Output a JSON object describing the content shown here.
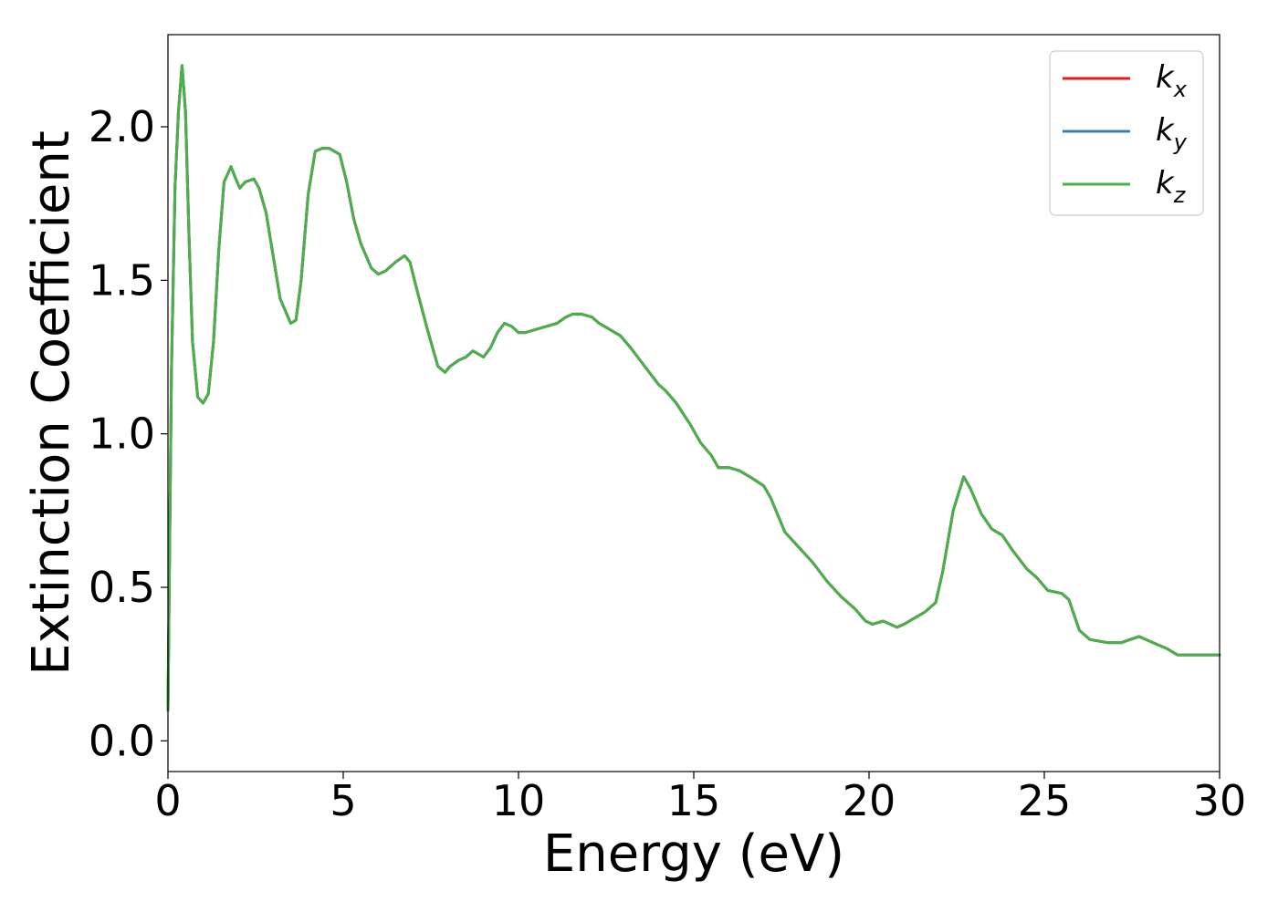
{
  "chart_data": {
    "type": "line",
    "title": "",
    "xlabel": "Energy (eV)",
    "ylabel": "Extinction Coefficient",
    "xlim": [
      0,
      30
    ],
    "ylim": [
      -0.1,
      2.3
    ],
    "xticks": [
      0,
      5,
      10,
      15,
      20,
      25,
      30
    ],
    "xtick_labels": [
      "0",
      "5",
      "10",
      "15",
      "20",
      "25",
      "30"
    ],
    "yticks": [
      0.0,
      0.5,
      1.0,
      1.5,
      2.0
    ],
    "ytick_labels": [
      "0.0",
      "0.5",
      "1.0",
      "1.5",
      "2.0"
    ],
    "grid": false,
    "legend_position": "top-right",
    "series": [
      {
        "name": "k_x",
        "color": "#e41a1c",
        "x": [
          0,
          0.1,
          0.2,
          0.3,
          0.4,
          0.5,
          0.6,
          0.7,
          0.85,
          1.0,
          1.15,
          1.3,
          1.45,
          1.6,
          1.8,
          1.9,
          2.05,
          2.2,
          2.45,
          2.6,
          2.8,
          3.0,
          3.2,
          3.5,
          3.65,
          3.8,
          4.0,
          4.2,
          4.4,
          4.6,
          4.9,
          5.1,
          5.3,
          5.5,
          5.8,
          6.0,
          6.2,
          6.5,
          6.75,
          6.9,
          7.1,
          7.4,
          7.7,
          7.9,
          8.05,
          8.3,
          8.5,
          8.7,
          8.85,
          9.0,
          9.2,
          9.4,
          9.6,
          9.8,
          10.0,
          10.2,
          10.5,
          10.8,
          11.1,
          11.35,
          11.55,
          11.8,
          12.1,
          12.3,
          12.6,
          12.9,
          13.2,
          13.6,
          14.0,
          14.2,
          14.5,
          14.9,
          15.2,
          15.5,
          15.7,
          16.0,
          16.3,
          16.6,
          17.0,
          17.2,
          17.6,
          18.0,
          18.4,
          18.8,
          19.2,
          19.6,
          19.9,
          20.1,
          20.4,
          20.6,
          20.8,
          21.0,
          21.3,
          21.6,
          21.9,
          22.1,
          22.4,
          22.7,
          22.9,
          23.2,
          23.5,
          23.8,
          24.1,
          24.5,
          24.8,
          25.1,
          25.5,
          25.7,
          26.0,
          26.3,
          26.8,
          27.2,
          27.7,
          28.1,
          28.5,
          28.8,
          29.2,
          29.6,
          30.0
        ],
        "y": [
          0.1,
          1.2,
          1.8,
          2.05,
          2.2,
          2.05,
          1.65,
          1.3,
          1.12,
          1.1,
          1.13,
          1.3,
          1.6,
          1.82,
          1.87,
          1.84,
          1.8,
          1.82,
          1.83,
          1.8,
          1.72,
          1.58,
          1.44,
          1.36,
          1.37,
          1.5,
          1.78,
          1.92,
          1.93,
          1.93,
          1.91,
          1.82,
          1.7,
          1.62,
          1.54,
          1.52,
          1.53,
          1.56,
          1.58,
          1.56,
          1.47,
          1.34,
          1.22,
          1.2,
          1.22,
          1.24,
          1.25,
          1.27,
          1.26,
          1.25,
          1.28,
          1.33,
          1.36,
          1.35,
          1.33,
          1.33,
          1.34,
          1.35,
          1.36,
          1.38,
          1.39,
          1.39,
          1.38,
          1.36,
          1.34,
          1.32,
          1.28,
          1.22,
          1.16,
          1.14,
          1.1,
          1.03,
          0.97,
          0.93,
          0.89,
          0.89,
          0.88,
          0.86,
          0.83,
          0.79,
          0.68,
          0.63,
          0.58,
          0.52,
          0.47,
          0.43,
          0.39,
          0.38,
          0.39,
          0.38,
          0.37,
          0.38,
          0.4,
          0.42,
          0.45,
          0.55,
          0.75,
          0.86,
          0.82,
          0.74,
          0.69,
          0.67,
          0.62,
          0.56,
          0.53,
          0.49,
          0.48,
          0.46,
          0.36,
          0.33,
          0.32,
          0.32,
          0.34,
          0.32,
          0.3,
          0.28,
          0.28,
          0.28,
          0.28
        ]
      },
      {
        "name": "k_y",
        "color": "#377eb8",
        "x": [
          0,
          0.1,
          0.2,
          0.3,
          0.4,
          0.5,
          0.6,
          0.7,
          0.85,
          1.0,
          1.15,
          1.3,
          1.45,
          1.6,
          1.8,
          1.9,
          2.05,
          2.2,
          2.45,
          2.6,
          2.8,
          3.0,
          3.2,
          3.5,
          3.65,
          3.8,
          4.0,
          4.2,
          4.4,
          4.6,
          4.9,
          5.1,
          5.3,
          5.5,
          5.8,
          6.0,
          6.2,
          6.5,
          6.75,
          6.9,
          7.1,
          7.4,
          7.7,
          7.9,
          8.05,
          8.3,
          8.5,
          8.7,
          8.85,
          9.0,
          9.2,
          9.4,
          9.6,
          9.8,
          10.0,
          10.2,
          10.5,
          10.8,
          11.1,
          11.35,
          11.55,
          11.8,
          12.1,
          12.3,
          12.6,
          12.9,
          13.2,
          13.6,
          14.0,
          14.2,
          14.5,
          14.9,
          15.2,
          15.5,
          15.7,
          16.0,
          16.3,
          16.6,
          17.0,
          17.2,
          17.6,
          18.0,
          18.4,
          18.8,
          19.2,
          19.6,
          19.9,
          20.1,
          20.4,
          20.6,
          20.8,
          21.0,
          21.3,
          21.6,
          21.9,
          22.1,
          22.4,
          22.7,
          22.9,
          23.2,
          23.5,
          23.8,
          24.1,
          24.5,
          24.8,
          25.1,
          25.5,
          25.7,
          26.0,
          26.3,
          26.8,
          27.2,
          27.7,
          28.1,
          28.5,
          28.8,
          29.2,
          29.6,
          30.0
        ],
        "y": [
          0.1,
          1.2,
          1.8,
          2.05,
          2.2,
          2.05,
          1.65,
          1.3,
          1.12,
          1.1,
          1.13,
          1.3,
          1.6,
          1.82,
          1.87,
          1.84,
          1.8,
          1.82,
          1.83,
          1.8,
          1.72,
          1.58,
          1.44,
          1.36,
          1.37,
          1.5,
          1.78,
          1.92,
          1.93,
          1.93,
          1.91,
          1.82,
          1.7,
          1.62,
          1.54,
          1.52,
          1.53,
          1.56,
          1.58,
          1.56,
          1.47,
          1.34,
          1.22,
          1.2,
          1.22,
          1.24,
          1.25,
          1.27,
          1.26,
          1.25,
          1.28,
          1.33,
          1.36,
          1.35,
          1.33,
          1.33,
          1.34,
          1.35,
          1.36,
          1.38,
          1.39,
          1.39,
          1.38,
          1.36,
          1.34,
          1.32,
          1.28,
          1.22,
          1.16,
          1.14,
          1.1,
          1.03,
          0.97,
          0.93,
          0.89,
          0.89,
          0.88,
          0.86,
          0.83,
          0.79,
          0.68,
          0.63,
          0.58,
          0.52,
          0.47,
          0.43,
          0.39,
          0.38,
          0.39,
          0.38,
          0.37,
          0.38,
          0.4,
          0.42,
          0.45,
          0.55,
          0.75,
          0.86,
          0.82,
          0.74,
          0.69,
          0.67,
          0.62,
          0.56,
          0.53,
          0.49,
          0.48,
          0.46,
          0.36,
          0.33,
          0.32,
          0.32,
          0.34,
          0.32,
          0.3,
          0.28,
          0.28,
          0.28,
          0.28
        ]
      },
      {
        "name": "k_z",
        "color": "#4daf4a",
        "x": [
          0,
          0.1,
          0.2,
          0.3,
          0.4,
          0.5,
          0.6,
          0.7,
          0.85,
          1.0,
          1.15,
          1.3,
          1.45,
          1.6,
          1.8,
          1.9,
          2.05,
          2.2,
          2.45,
          2.6,
          2.8,
          3.0,
          3.2,
          3.5,
          3.65,
          3.8,
          4.0,
          4.2,
          4.4,
          4.6,
          4.9,
          5.1,
          5.3,
          5.5,
          5.8,
          6.0,
          6.2,
          6.5,
          6.75,
          6.9,
          7.1,
          7.4,
          7.7,
          7.9,
          8.05,
          8.3,
          8.5,
          8.7,
          8.85,
          9.0,
          9.2,
          9.4,
          9.6,
          9.8,
          10.0,
          10.2,
          10.5,
          10.8,
          11.1,
          11.35,
          11.55,
          11.8,
          12.1,
          12.3,
          12.6,
          12.9,
          13.2,
          13.6,
          14.0,
          14.2,
          14.5,
          14.9,
          15.2,
          15.5,
          15.7,
          16.0,
          16.3,
          16.6,
          17.0,
          17.2,
          17.6,
          18.0,
          18.4,
          18.8,
          19.2,
          19.6,
          19.9,
          20.1,
          20.4,
          20.6,
          20.8,
          21.0,
          21.3,
          21.6,
          21.9,
          22.1,
          22.4,
          22.7,
          22.9,
          23.2,
          23.5,
          23.8,
          24.1,
          24.5,
          24.8,
          25.1,
          25.5,
          25.7,
          26.0,
          26.3,
          26.8,
          27.2,
          27.7,
          28.1,
          28.5,
          28.8,
          29.2,
          29.6,
          30.0
        ],
        "y": [
          0.1,
          1.2,
          1.8,
          2.05,
          2.2,
          2.05,
          1.65,
          1.3,
          1.12,
          1.1,
          1.13,
          1.3,
          1.6,
          1.82,
          1.87,
          1.84,
          1.8,
          1.82,
          1.83,
          1.8,
          1.72,
          1.58,
          1.44,
          1.36,
          1.37,
          1.5,
          1.78,
          1.92,
          1.93,
          1.93,
          1.91,
          1.82,
          1.7,
          1.62,
          1.54,
          1.52,
          1.53,
          1.56,
          1.58,
          1.56,
          1.47,
          1.34,
          1.22,
          1.2,
          1.22,
          1.24,
          1.25,
          1.27,
          1.26,
          1.25,
          1.28,
          1.33,
          1.36,
          1.35,
          1.33,
          1.33,
          1.34,
          1.35,
          1.36,
          1.38,
          1.39,
          1.39,
          1.38,
          1.36,
          1.34,
          1.32,
          1.28,
          1.22,
          1.16,
          1.14,
          1.1,
          1.03,
          0.97,
          0.93,
          0.89,
          0.89,
          0.88,
          0.86,
          0.83,
          0.79,
          0.68,
          0.63,
          0.58,
          0.52,
          0.47,
          0.43,
          0.39,
          0.38,
          0.39,
          0.38,
          0.37,
          0.38,
          0.4,
          0.42,
          0.45,
          0.55,
          0.75,
          0.86,
          0.82,
          0.74,
          0.69,
          0.67,
          0.62,
          0.56,
          0.53,
          0.49,
          0.48,
          0.46,
          0.36,
          0.33,
          0.32,
          0.32,
          0.34,
          0.32,
          0.3,
          0.28,
          0.28,
          0.28,
          0.28
        ]
      }
    ]
  }
}
